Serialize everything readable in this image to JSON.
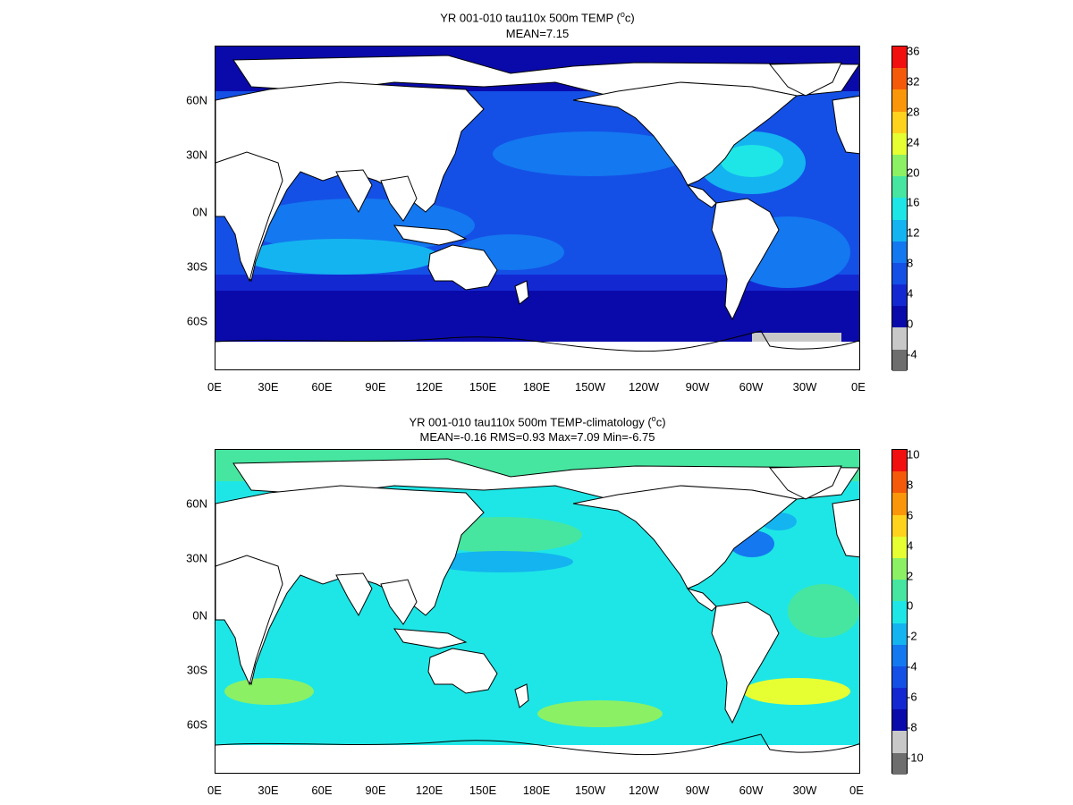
{
  "panels": [
    {
      "title_main": "YR 001-010 tau110x 500m TEMP (",
      "title_sup": "o",
      "title_end": "c)",
      "stats": "MEAN=7.15",
      "colorbar_labels": [
        "36",
        "32",
        "28",
        "24",
        "20",
        "16",
        "12",
        "8",
        "4",
        "0",
        "-4"
      ],
      "colorbar_colors": [
        "#f20f0f",
        "#f55a0a",
        "#fa960a",
        "#ffd21e",
        "#e6ff32",
        "#8cf064",
        "#46e6a0",
        "#1ee6e6",
        "#14b4f0",
        "#1478f0",
        "#1450e6",
        "#1428d2",
        "#0a0aaa",
        "#c8c8c8",
        "#6e6e6e"
      ]
    },
    {
      "title_main": "YR 001-010 tau110x 500m TEMP-climatology (",
      "title_sup": "o",
      "title_end": "c)",
      "stats": "MEAN=-0.16   RMS=0.93   Max=7.09   Min=-6.75",
      "colorbar_labels": [
        "10",
        "8",
        "6",
        "4",
        "2",
        "0",
        "-2",
        "-4",
        "-6",
        "-8",
        "-10"
      ],
      "colorbar_colors": [
        "#f20f0f",
        "#f55a0a",
        "#fa960a",
        "#ffd21e",
        "#e6ff32",
        "#8cf064",
        "#46e6a0",
        "#1ee6e6",
        "#14b4f0",
        "#1478f0",
        "#1450e6",
        "#1428d2",
        "#0a0aaa",
        "#c8c8c8",
        "#6e6e6e"
      ]
    }
  ],
  "x_ticks": [
    "0E",
    "30E",
    "60E",
    "90E",
    "120E",
    "150E",
    "180E",
    "150W",
    "120W",
    "90W",
    "60W",
    "30W",
    "0E"
  ],
  "y_ticks": [
    "60N",
    "30N",
    "0N",
    "30S",
    "60S"
  ]
}
